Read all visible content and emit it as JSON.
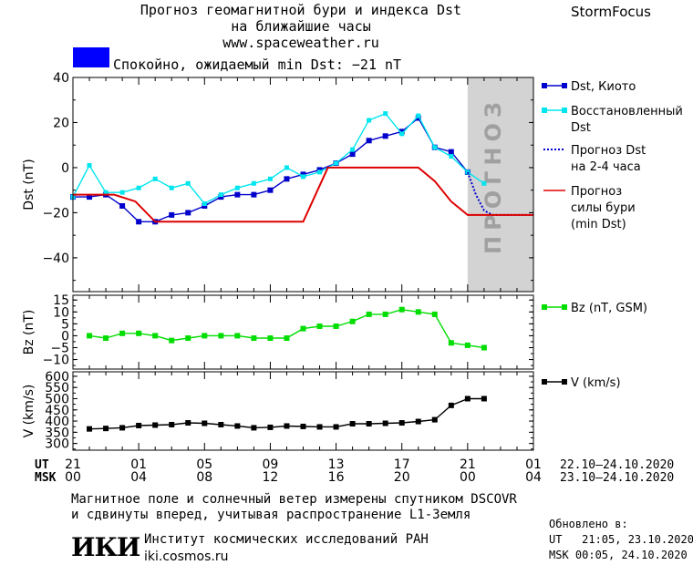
{
  "header": {
    "title_line1": "Прогноз геомагнитной бури и индекса Dst",
    "title_line2": "на ближайшие часы",
    "site": "www.spaceweather.ru",
    "brand": "StormFocus"
  },
  "status": {
    "text": "Спокойно, ожидаемый min Dst: −21 nT",
    "color": "#0000ff"
  },
  "forecast_zone_label": "ПРОГНОЗ",
  "footer": {
    "note_line1": "Магнитное поле и солнечный ветер измерены спутником DSCOVR",
    "note_line2": "и сдвинуты вперед, учитывая распространение L1-Земля",
    "institute_logo_text": "ИКИ",
    "institute_name": "Институт космических исследований РАН",
    "institute_url": "iki.cosmos.ru",
    "updated_label": "Обновлено в:",
    "updated_ut": "UT   21:05, 23.10.2020",
    "updated_msk": "MSK 00:05, 24.10.2020"
  },
  "time_axis": {
    "ut_label": "UT",
    "msk_label": "MSK",
    "ut_ticks": [
      "21",
      "01",
      "05",
      "09",
      "13",
      "17",
      "21",
      "01"
    ],
    "msk_ticks": [
      "00",
      "04",
      "08",
      "12",
      "16",
      "20",
      "00",
      "04"
    ],
    "range_ut": "22.10–24.10.2020",
    "range_msk": "23.10–24.10.2020"
  },
  "chart_data": [
    {
      "type": "line",
      "ylabel": "Dst (nT)",
      "ylim": [
        -55,
        40
      ],
      "yticks": [
        40,
        20,
        0,
        -20,
        -40
      ],
      "x_unit": "hours from 21 UT",
      "xlim": [
        0,
        28
      ],
      "forecast_region": [
        24,
        28
      ],
      "series": [
        {
          "name": "Dst, Киото",
          "color": "#0000cc",
          "x": [
            0,
            1,
            2,
            3,
            4,
            5,
            6,
            7,
            8,
            9,
            10,
            11,
            12,
            13,
            14,
            15,
            16,
            17,
            18,
            19,
            20,
            21,
            22,
            23,
            24
          ],
          "values": [
            -13,
            -13,
            -12,
            -17,
            -24,
            -24,
            -21,
            -20,
            -17,
            -13,
            -12,
            -12,
            -10,
            -5,
            -3,
            -1,
            2,
            6,
            12,
            14,
            16,
            22,
            9,
            7,
            -2
          ]
        },
        {
          "name": "Восстановленный Dst",
          "color": "#00e5ee",
          "x": [
            0,
            1,
            2,
            3,
            4,
            5,
            6,
            7,
            8,
            9,
            10,
            11,
            12,
            13,
            14,
            15,
            16,
            17,
            18,
            19,
            20,
            21,
            22,
            23,
            24,
            25
          ],
          "values": [
            -13,
            1,
            -11,
            -11,
            -9,
            -5,
            -9,
            -7,
            -16,
            -12,
            -9,
            -7,
            -5,
            0,
            -4,
            -2,
            2,
            8,
            21,
            24,
            15,
            23,
            9,
            5,
            -2,
            -7
          ]
        },
        {
          "name": "Прогноз Dst на 2-4 часа",
          "color": "#0000cc",
          "x": [
            24,
            24.5,
            25,
            25.5,
            26,
            27,
            28
          ],
          "values": [
            -2,
            -12,
            -19,
            -21,
            -21,
            -21,
            -21
          ]
        },
        {
          "name": "Прогноз силы бури (min Dst)",
          "color": "#dd0000",
          "x": [
            0,
            2.5,
            3.8,
            5,
            14,
            15.5,
            21,
            22,
            23,
            24,
            28
          ],
          "values": [
            -12,
            -12,
            -15,
            -24,
            -24,
            0,
            0,
            -6,
            -15,
            -21,
            -21
          ]
        }
      ]
    },
    {
      "type": "line",
      "ylabel": "Bz (nT)",
      "ylim": [
        -14,
        17
      ],
      "yticks": [
        15,
        10,
        5,
        0,
        -5,
        -10
      ],
      "series": [
        {
          "name": "Bz (nT, GSM)",
          "color": "#00dd00",
          "x": [
            1,
            2,
            3,
            4,
            5,
            6,
            7,
            8,
            9,
            10,
            11,
            12,
            13,
            14,
            15,
            16,
            17,
            18,
            19,
            20,
            21,
            22,
            23,
            24,
            25
          ],
          "values": [
            0,
            -1,
            1,
            1,
            0,
            -2,
            -1,
            0,
            0,
            0,
            -1,
            -1,
            -1,
            3,
            4,
            4,
            6,
            9,
            9,
            11,
            10,
            9,
            -3,
            -4,
            -5
          ]
        }
      ]
    },
    {
      "type": "line",
      "ylabel": "V (km/s)",
      "ylim": [
        270,
        620
      ],
      "yticks": [
        600,
        550,
        500,
        450,
        400,
        350,
        300
      ],
      "series": [
        {
          "name": "V (km/s)",
          "color": "#000000",
          "x": [
            1,
            2,
            3,
            4,
            5,
            6,
            7,
            8,
            9,
            10,
            11,
            12,
            13,
            14,
            15,
            16,
            17,
            18,
            19,
            20,
            21,
            22,
            23,
            24,
            25
          ],
          "values": [
            365,
            367,
            370,
            380,
            382,
            384,
            392,
            390,
            384,
            378,
            370,
            372,
            378,
            376,
            374,
            374,
            388,
            388,
            390,
            392,
            398,
            406,
            470,
            500,
            500
          ]
        }
      ]
    }
  ]
}
